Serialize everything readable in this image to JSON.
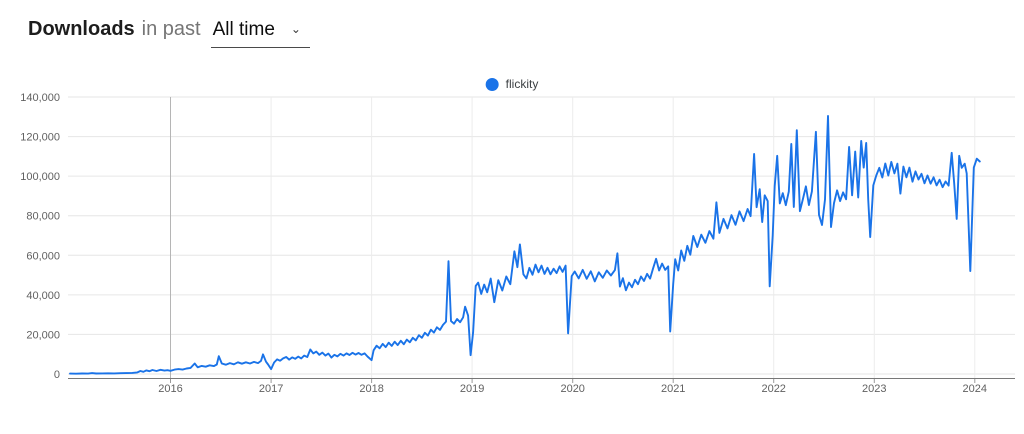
{
  "header": {
    "title": "Downloads",
    "context_label": "in past",
    "range_selector": {
      "value": "All time",
      "caret": "⌄"
    }
  },
  "legend": {
    "label": "flickity",
    "color": "#1a73e8"
  },
  "chart_data": {
    "type": "line",
    "title": "npm downloads of flickity, all time",
    "xlabel": "",
    "ylabel": "",
    "xlim": [
      2014.98,
      2024.4
    ],
    "ylim": [
      0,
      140000
    ],
    "grid": true,
    "legend_position": "top-center",
    "x_ticks": [
      2016,
      2017,
      2018,
      2019,
      2020,
      2021,
      2022,
      2023,
      2024
    ],
    "x_tick_labels": [
      "2016",
      "2017",
      "2018",
      "2019",
      "2020",
      "2021",
      "2022",
      "2023",
      "2024"
    ],
    "emphasized_x_tick": 2016,
    "y_ticks": [
      0,
      20000,
      40000,
      60000,
      80000,
      100000,
      120000,
      140000
    ],
    "y_tick_labels": [
      "0",
      "20,000",
      "40,000",
      "60,000",
      "80,000",
      "100,000",
      "120,000",
      "140,000"
    ],
    "series": [
      {
        "name": "flickity",
        "color": "#1a73e8",
        "points": [
          [
            2015.0,
            200
          ],
          [
            2015.06,
            150
          ],
          [
            2015.12,
            250
          ],
          [
            2015.18,
            200
          ],
          [
            2015.22,
            450
          ],
          [
            2015.26,
            250
          ],
          [
            2015.32,
            300
          ],
          [
            2015.38,
            350
          ],
          [
            2015.44,
            300
          ],
          [
            2015.5,
            400
          ],
          [
            2015.56,
            450
          ],
          [
            2015.62,
            550
          ],
          [
            2015.67,
            800
          ],
          [
            2015.7,
            1500
          ],
          [
            2015.73,
            1100
          ],
          [
            2015.76,
            1800
          ],
          [
            2015.79,
            1400
          ],
          [
            2015.82,
            2000
          ],
          [
            2015.86,
            1500
          ],
          [
            2015.9,
            2100
          ],
          [
            2015.94,
            1700
          ],
          [
            2015.97,
            1900
          ],
          [
            2016.0,
            1600
          ],
          [
            2016.04,
            2200
          ],
          [
            2016.08,
            2500
          ],
          [
            2016.12,
            2200
          ],
          [
            2016.16,
            2800
          ],
          [
            2016.2,
            3100
          ],
          [
            2016.24,
            5300
          ],
          [
            2016.27,
            3400
          ],
          [
            2016.31,
            4100
          ],
          [
            2016.35,
            3700
          ],
          [
            2016.39,
            4400
          ],
          [
            2016.43,
            4000
          ],
          [
            2016.46,
            4800
          ],
          [
            2016.48,
            9000
          ],
          [
            2016.51,
            5300
          ],
          [
            2016.55,
            4700
          ],
          [
            2016.59,
            5500
          ],
          [
            2016.63,
            4900
          ],
          [
            2016.67,
            5900
          ],
          [
            2016.71,
            5200
          ],
          [
            2016.75,
            5900
          ],
          [
            2016.79,
            5300
          ],
          [
            2016.83,
            6100
          ],
          [
            2016.87,
            5500
          ],
          [
            2016.9,
            6600
          ],
          [
            2016.92,
            9900
          ],
          [
            2016.95,
            6200
          ],
          [
            2016.97,
            4800
          ],
          [
            2017.0,
            2500
          ],
          [
            2017.03,
            5800
          ],
          [
            2017.06,
            7400
          ],
          [
            2017.09,
            6700
          ],
          [
            2017.12,
            7900
          ],
          [
            2017.15,
            8600
          ],
          [
            2017.18,
            7300
          ],
          [
            2017.21,
            8400
          ],
          [
            2017.24,
            7700
          ],
          [
            2017.27,
            8800
          ],
          [
            2017.3,
            7900
          ],
          [
            2017.33,
            9300
          ],
          [
            2017.36,
            8600
          ],
          [
            2017.39,
            12400
          ],
          [
            2017.42,
            10400
          ],
          [
            2017.45,
            11300
          ],
          [
            2017.48,
            9700
          ],
          [
            2017.51,
            10800
          ],
          [
            2017.54,
            9300
          ],
          [
            2017.57,
            10300
          ],
          [
            2017.6,
            8300
          ],
          [
            2017.63,
            9700
          ],
          [
            2017.66,
            8900
          ],
          [
            2017.69,
            10200
          ],
          [
            2017.72,
            9300
          ],
          [
            2017.75,
            10400
          ],
          [
            2017.78,
            9600
          ],
          [
            2017.81,
            10700
          ],
          [
            2017.84,
            9800
          ],
          [
            2017.87,
            10600
          ],
          [
            2017.9,
            9700
          ],
          [
            2017.93,
            10400
          ],
          [
            2017.96,
            8800
          ],
          [
            2018.0,
            7000
          ],
          [
            2018.02,
            12000
          ],
          [
            2018.05,
            14300
          ],
          [
            2018.08,
            13000
          ],
          [
            2018.11,
            15200
          ],
          [
            2018.14,
            13600
          ],
          [
            2018.17,
            15800
          ],
          [
            2018.2,
            14200
          ],
          [
            2018.23,
            16300
          ],
          [
            2018.26,
            14600
          ],
          [
            2018.29,
            16800
          ],
          [
            2018.32,
            15000
          ],
          [
            2018.35,
            17400
          ],
          [
            2018.38,
            16000
          ],
          [
            2018.41,
            18300
          ],
          [
            2018.44,
            17000
          ],
          [
            2018.47,
            19600
          ],
          [
            2018.5,
            18300
          ],
          [
            2018.53,
            20800
          ],
          [
            2018.56,
            19400
          ],
          [
            2018.59,
            22400
          ],
          [
            2018.62,
            20900
          ],
          [
            2018.65,
            23600
          ],
          [
            2018.68,
            22300
          ],
          [
            2018.71,
            24800
          ],
          [
            2018.74,
            26500
          ],
          [
            2018.765,
            57000
          ],
          [
            2018.79,
            26800
          ],
          [
            2018.82,
            25400
          ],
          [
            2018.85,
            27800
          ],
          [
            2018.88,
            26200
          ],
          [
            2018.91,
            28600
          ],
          [
            2018.93,
            34000
          ],
          [
            2018.96,
            29500
          ],
          [
            2018.985,
            9500
          ],
          [
            2019.01,
            21000
          ],
          [
            2019.035,
            44500
          ],
          [
            2019.06,
            46200
          ],
          [
            2019.09,
            40500
          ],
          [
            2019.12,
            45200
          ],
          [
            2019.15,
            41300
          ],
          [
            2019.185,
            48200
          ],
          [
            2019.22,
            36300
          ],
          [
            2019.26,
            47400
          ],
          [
            2019.3,
            42200
          ],
          [
            2019.34,
            49300
          ],
          [
            2019.38,
            45400
          ],
          [
            2019.42,
            62000
          ],
          [
            2019.45,
            54000
          ],
          [
            2019.475,
            65500
          ],
          [
            2019.51,
            50400
          ],
          [
            2019.54,
            48300
          ],
          [
            2019.57,
            53600
          ],
          [
            2019.6,
            50200
          ],
          [
            2019.63,
            55300
          ],
          [
            2019.66,
            51400
          ],
          [
            2019.69,
            54800
          ],
          [
            2019.72,
            50600
          ],
          [
            2019.75,
            53700
          ],
          [
            2019.78,
            50400
          ],
          [
            2019.81,
            53200
          ],
          [
            2019.84,
            51000
          ],
          [
            2019.87,
            54400
          ],
          [
            2019.9,
            51600
          ],
          [
            2019.93,
            54800
          ],
          [
            2019.955,
            20500
          ],
          [
            2019.99,
            49500
          ],
          [
            2020.02,
            51800
          ],
          [
            2020.06,
            48300
          ],
          [
            2020.1,
            52600
          ],
          [
            2020.14,
            48100
          ],
          [
            2020.18,
            51900
          ],
          [
            2020.22,
            46800
          ],
          [
            2020.26,
            51400
          ],
          [
            2020.3,
            48600
          ],
          [
            2020.34,
            52300
          ],
          [
            2020.38,
            49800
          ],
          [
            2020.42,
            52500
          ],
          [
            2020.445,
            61000
          ],
          [
            2020.47,
            44200
          ],
          [
            2020.5,
            48400
          ],
          [
            2020.53,
            42300
          ],
          [
            2020.56,
            46200
          ],
          [
            2020.59,
            43800
          ],
          [
            2020.62,
            47600
          ],
          [
            2020.65,
            45400
          ],
          [
            2020.68,
            49300
          ],
          [
            2020.71,
            47000
          ],
          [
            2020.74,
            50600
          ],
          [
            2020.77,
            48200
          ],
          [
            2020.8,
            53400
          ],
          [
            2020.83,
            58200
          ],
          [
            2020.86,
            52300
          ],
          [
            2020.89,
            55800
          ],
          [
            2020.92,
            52600
          ],
          [
            2020.95,
            54400
          ],
          [
            2020.97,
            21500
          ],
          [
            2021.0,
            45500
          ],
          [
            2021.02,
            58000
          ],
          [
            2021.05,
            52300
          ],
          [
            2021.08,
            62400
          ],
          [
            2021.11,
            57200
          ],
          [
            2021.14,
            64800
          ],
          [
            2021.17,
            60300
          ],
          [
            2021.2,
            69800
          ],
          [
            2021.24,
            64200
          ],
          [
            2021.28,
            70400
          ],
          [
            2021.32,
            66300
          ],
          [
            2021.36,
            72200
          ],
          [
            2021.4,
            68400
          ],
          [
            2021.43,
            86800
          ],
          [
            2021.46,
            71300
          ],
          [
            2021.5,
            78400
          ],
          [
            2021.54,
            73600
          ],
          [
            2021.58,
            80300
          ],
          [
            2021.62,
            75400
          ],
          [
            2021.66,
            82200
          ],
          [
            2021.7,
            77300
          ],
          [
            2021.74,
            83400
          ],
          [
            2021.77,
            79800
          ],
          [
            2021.805,
            111200
          ],
          [
            2021.83,
            84300
          ],
          [
            2021.86,
            93400
          ],
          [
            2021.885,
            76800
          ],
          [
            2021.91,
            90300
          ],
          [
            2021.94,
            87400
          ],
          [
            2021.96,
            44300
          ],
          [
            2021.99,
            70000
          ],
          [
            2022.01,
            95000
          ],
          [
            2022.035,
            110300
          ],
          [
            2022.06,
            86200
          ],
          [
            2022.09,
            91400
          ],
          [
            2022.12,
            85300
          ],
          [
            2022.15,
            92200
          ],
          [
            2022.175,
            116300
          ],
          [
            2022.2,
            84400
          ],
          [
            2022.23,
            123200
          ],
          [
            2022.26,
            82300
          ],
          [
            2022.29,
            88400
          ],
          [
            2022.32,
            94800
          ],
          [
            2022.35,
            85400
          ],
          [
            2022.38,
            92300
          ],
          [
            2022.42,
            122400
          ],
          [
            2022.45,
            80400
          ],
          [
            2022.48,
            75300
          ],
          [
            2022.51,
            88200
          ],
          [
            2022.54,
            130400
          ],
          [
            2022.57,
            74300
          ],
          [
            2022.6,
            86400
          ],
          [
            2022.63,
            92800
          ],
          [
            2022.66,
            87400
          ],
          [
            2022.69,
            91800
          ],
          [
            2022.72,
            88300
          ],
          [
            2022.75,
            114800
          ],
          [
            2022.78,
            90300
          ],
          [
            2022.81,
            112400
          ],
          [
            2022.84,
            89200
          ],
          [
            2022.87,
            117800
          ],
          [
            2022.895,
            104300
          ],
          [
            2022.92,
            116800
          ],
          [
            2022.94,
            88400
          ],
          [
            2022.96,
            69200
          ],
          [
            2022.99,
            95300
          ],
          [
            2023.02,
            100400
          ],
          [
            2023.05,
            104200
          ],
          [
            2023.08,
            99300
          ],
          [
            2023.11,
            106400
          ],
          [
            2023.14,
            100300
          ],
          [
            2023.17,
            107200
          ],
          [
            2023.2,
            101400
          ],
          [
            2023.23,
            106300
          ],
          [
            2023.26,
            91200
          ],
          [
            2023.29,
            104800
          ],
          [
            2023.32,
            99400
          ],
          [
            2023.35,
            104300
          ],
          [
            2023.38,
            97200
          ],
          [
            2023.41,
            102400
          ],
          [
            2023.44,
            98300
          ],
          [
            2023.47,
            101200
          ],
          [
            2023.5,
            96400
          ],
          [
            2023.53,
            100300
          ],
          [
            2023.56,
            96200
          ],
          [
            2023.59,
            99400
          ],
          [
            2023.62,
            95300
          ],
          [
            2023.65,
            98200
          ],
          [
            2023.68,
            94400
          ],
          [
            2023.71,
            97300
          ],
          [
            2023.74,
            95200
          ],
          [
            2023.77,
            111800
          ],
          [
            2023.795,
            96300
          ],
          [
            2023.82,
            78400
          ],
          [
            2023.845,
            110300
          ],
          [
            2023.87,
            104200
          ],
          [
            2023.9,
            106300
          ],
          [
            2023.92,
            101400
          ],
          [
            2023.955,
            52000
          ],
          [
            2023.99,
            104300
          ],
          [
            2024.02,
            108800
          ],
          [
            2024.05,
            107400
          ]
        ]
      }
    ]
  }
}
